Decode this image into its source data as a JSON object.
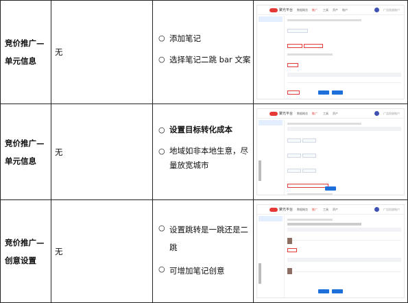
{
  "rows": [
    {
      "title_lines": [
        "竞价推广—",
        "单元信息"
      ],
      "value": "无",
      "bullets": [
        {
          "text": "添加笔记",
          "bold": false
        },
        {
          "text": "选择笔记二跳 bar 文案",
          "bold": false
        }
      ]
    },
    {
      "title_lines": [
        "竞价推广—",
        "单元信息"
      ],
      "value": "无",
      "bullets": [
        {
          "text": "设置目标转化成本",
          "bold": true
        },
        {
          "text": "地域如非本地生意，尽量放宽城市",
          "bold": false
        }
      ]
    },
    {
      "title_lines": [
        "竞价推广—",
        "创意设置"
      ],
      "value": "无",
      "bullets": [
        {
          "text": "设置跳转是一跳还是二跳",
          "bold": false
        },
        {
          "text": "可增加笔记创意",
          "bold": false
        }
      ]
    }
  ],
  "bullet_glyph": "○",
  "screenshot": {
    "brand": "聚光平台",
    "nav": [
      "数据概览",
      "推广",
      "工具",
      "资产",
      "账户"
    ],
    "active_nav": 1,
    "user": "广告投放账户"
  }
}
